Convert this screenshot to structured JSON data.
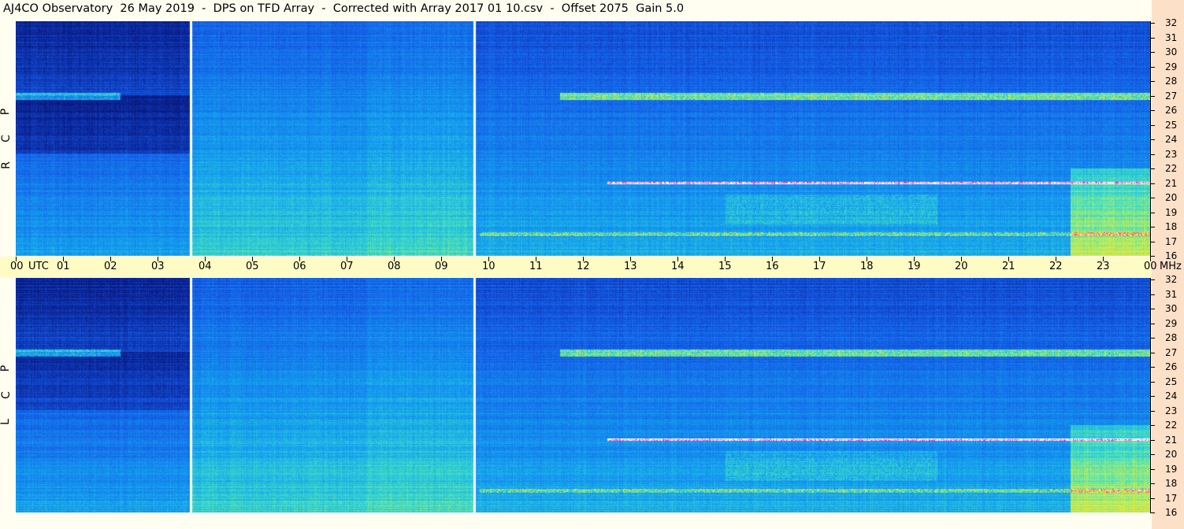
{
  "title": "AJ4CO Observatory  26 May 2019  -  DPS on TFD Array  -  Corrected with Array 2017 01 10.csv  -  Offset 2075  Gain 5.0",
  "chart_data": {
    "type": "heatmap",
    "title": "AJ4CO Observatory  26 May 2019  -  DPS on TFD Array  -  Corrected with Array 2017 01 10.csv  -  Offset 2075  Gain 5.0",
    "x_unit": "UTC",
    "y_unit": "MHz",
    "x_ticks": [
      "00",
      "01",
      "02",
      "03",
      "04",
      "05",
      "06",
      "07",
      "08",
      "09",
      "10",
      "11",
      "12",
      "13",
      "14",
      "15",
      "16",
      "17",
      "18",
      "19",
      "20",
      "21",
      "22",
      "23",
      "00"
    ],
    "y_ticks": [
      16,
      17,
      18,
      19,
      20,
      21,
      22,
      23,
      24,
      25,
      26,
      27,
      28,
      29,
      30,
      31,
      32
    ],
    "xlim_hours": [
      0,
      24
    ],
    "ylim_mhz": [
      16,
      32
    ],
    "panels": [
      {
        "name": "RCP",
        "label_letters": [
          "P",
          "C",
          "R"
        ]
      },
      {
        "name": "LCP",
        "label_letters": [
          "P",
          "C",
          "L"
        ]
      }
    ],
    "data_gaps_hours": [
      3.7,
      9.7
    ],
    "notable_features": [
      {
        "freq_mhz": 27,
        "band": "strong interference band"
      },
      {
        "freq_mhz": 21,
        "band": "narrow white line"
      },
      {
        "freq_mhz": 17.5,
        "band": "interference band"
      }
    ]
  },
  "labels": {
    "utc": "UTC",
    "mhz": "MHz"
  }
}
